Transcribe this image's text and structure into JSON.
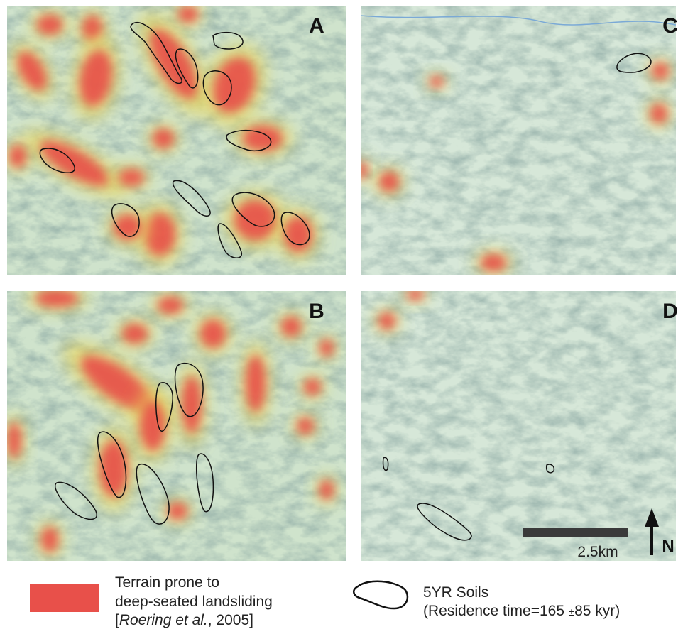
{
  "panels": [
    {
      "label": "A"
    },
    {
      "label": "C"
    },
    {
      "label": "B"
    },
    {
      "label": "D"
    }
  ],
  "legend": [
    {
      "lines": [
        [
          "Terrain prone to"
        ],
        [
          "deep-seated landsliding"
        ],
        [
          "[",
          "Roering et al.",
          ", 2005]"
        ]
      ]
    },
    {
      "lines": [
        [
          "5YR Soils"
        ],
        [
          "(Residence time=165 ",
          "±",
          "85 kyr)"
        ]
      ]
    }
  ],
  "scale_bar": {
    "label": "2.5km"
  },
  "north_arrow": {
    "label": "N"
  }
}
